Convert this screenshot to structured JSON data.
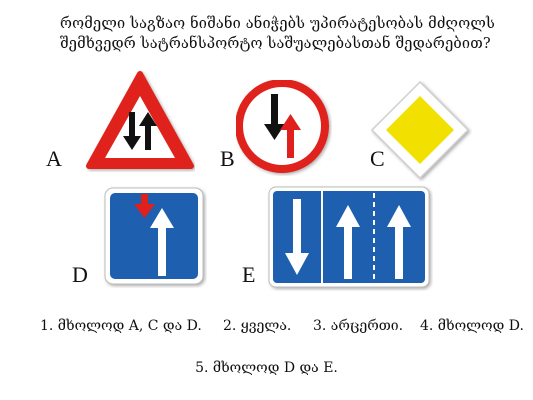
{
  "question": {
    "line1": "რომელი საგზაო ნიშანი ანიჭებს უპირატესობას მძღოლს",
    "line2": "შემხვედრ სატრანსპორტო საშუალებასთან შედარებით?"
  },
  "signs": [
    {
      "letter": "A",
      "icon": "two-way-traffic-triangle-icon"
    },
    {
      "letter": "B",
      "icon": "give-way-oncoming-traffic-icon"
    },
    {
      "letter": "C",
      "icon": "priority-road-diamond-icon"
    },
    {
      "letter": "D",
      "icon": "priority-over-oncoming-traffic-icon"
    },
    {
      "letter": "E",
      "icon": "lane-direction-board-icon"
    }
  ],
  "answers": [
    "1. მხოლოდ A, C და D.",
    "2. ყველა.",
    "3. არცერთი.",
    "4. მხოლოდ D.",
    "5. მხოლოდ D და E."
  ],
  "colors": {
    "red": "#e0201c",
    "blue": "#1f5fb0",
    "yellow": "#f2e100",
    "black": "#111111"
  }
}
